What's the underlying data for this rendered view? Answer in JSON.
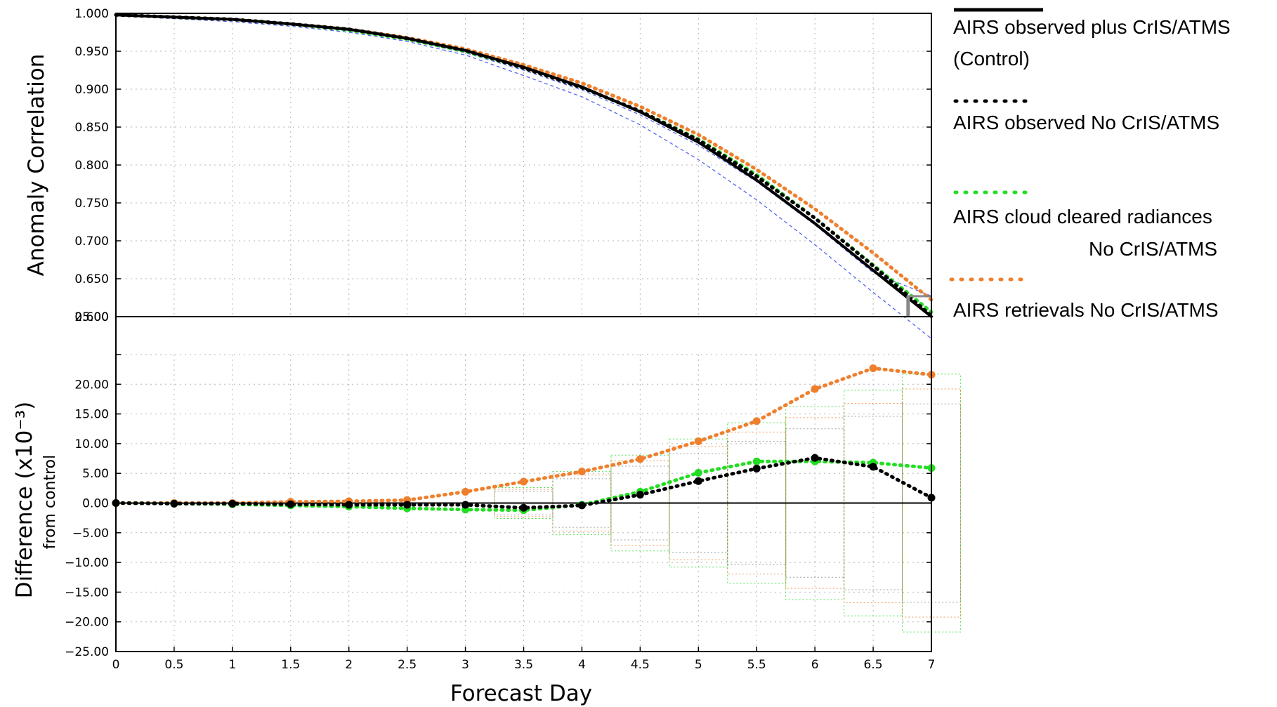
{
  "chart_data": [
    {
      "type": "line",
      "ylabel": "Anomaly Correlation",
      "ylim": [
        0.6,
        1.0
      ],
      "yticks": [
        "1.000",
        "0.950",
        "0.900",
        "0.850",
        "0.800",
        "0.750",
        "0.700",
        "0.650",
        "0.600"
      ],
      "x": [
        0,
        0.5,
        1,
        1.5,
        2,
        2.5,
        3,
        3.5,
        4,
        4.5,
        5,
        5.5,
        6,
        6.5,
        7
      ],
      "grid": true,
      "series": [
        {
          "name": "AIRS observed plus CrIS/ATMS (Control)",
          "color": "#000000",
          "values": [
            0.998,
            0.995,
            0.992,
            0.986,
            0.979,
            0.967,
            0.951,
            0.929,
            0.903,
            0.87,
            0.83,
            0.78,
            0.723,
            0.661,
            0.6
          ]
        },
        {
          "name": "AIRS observed No CrIS/ATMS",
          "color": "#000000",
          "values": [
            0.998,
            0.995,
            0.992,
            0.986,
            0.979,
            0.967,
            0.951,
            0.928,
            0.902,
            0.871,
            0.833,
            0.785,
            0.73,
            0.667,
            0.601
          ]
        },
        {
          "name": "AIRS cloud cleared radiances No CrIS/ATMS",
          "color": "#22dd22",
          "values": [
            0.998,
            0.995,
            0.992,
            0.986,
            0.978,
            0.966,
            0.95,
            0.928,
            0.902,
            0.871,
            0.834,
            0.787,
            0.73,
            0.668,
            0.606
          ]
        },
        {
          "name": "AIRS retrievals No CrIS/ATMS",
          "color": "#ee7f2d",
          "values": [
            0.998,
            0.995,
            0.992,
            0.986,
            0.979,
            0.968,
            0.953,
            0.932,
            0.908,
            0.877,
            0.84,
            0.794,
            0.742,
            0.684,
            0.622
          ]
        }
      ],
      "bands": [
        {
          "color": "#5566ee",
          "values": [
            0.998,
            0.995,
            0.991,
            0.985,
            0.977,
            0.965,
            0.948,
            0.925,
            0.899,
            0.866,
            0.826,
            0.778,
            0.721,
            0.658,
            0.627
          ]
        },
        {
          "color": "#5566ee",
          "values": [
            0.997,
            0.993,
            0.989,
            0.983,
            0.975,
            0.963,
            0.945,
            0.918,
            0.89,
            0.853,
            0.807,
            0.754,
            0.695,
            0.632,
            0.571
          ]
        }
      ]
    },
    {
      "type": "line",
      "xlabel": "Forecast Day",
      "ylabel": "Difference (x10⁻³)",
      "ylabel2": "from control",
      "ylim": [
        -25,
        25
      ],
      "yticks": [
        "25.00",
        "20.00",
        "15.00",
        "10.00",
        "5.00",
        "0.00",
        "−5.00",
        "−10.00",
        "−15.00",
        "−20.00",
        "−25.00"
      ],
      "xticks": [
        "0",
        "0.5",
        "1",
        "1.5",
        "2",
        "2.5",
        "3",
        "3.5",
        "4",
        "4.5",
        "5",
        "5.5",
        "6",
        "6.5",
        "7"
      ],
      "x": [
        0,
        0.5,
        1,
        1.5,
        2,
        2.5,
        3,
        3.5,
        4,
        4.5,
        5,
        5.5,
        6,
        6.5,
        7
      ],
      "grid": true,
      "series": [
        {
          "name": "AIRS observed No CrIS/ATMS",
          "color": "#000000",
          "values": [
            0,
            -0.1,
            -0.1,
            -0.2,
            -0.3,
            -0.3,
            -0.3,
            -0.8,
            -0.4,
            1.4,
            3.7,
            5.8,
            7.6,
            6.1,
            0.9
          ]
        },
        {
          "name": "AIRS cloud cleared radiances No CrIS/ATMS",
          "color": "#22dd22",
          "values": [
            0,
            -0.1,
            -0.2,
            -0.4,
            -0.6,
            -0.9,
            -1.1,
            -1.2,
            -0.3,
            1.9,
            5.1,
            7.0,
            7.0,
            6.8,
            5.9
          ]
        },
        {
          "name": "AIRS retrievals No CrIS/ATMS",
          "color": "#ee7f2d",
          "values": [
            0,
            0,
            0,
            0.2,
            0.3,
            0.5,
            1.9,
            3.6,
            5.3,
            7.4,
            10.4,
            13.8,
            19.2,
            22.7,
            21.6
          ]
        }
      ]
    }
  ],
  "legend": {
    "items": [
      {
        "line1": "AIRS observed plus CrIS/ATMS",
        "line2": "(Control)",
        "style": "solid",
        "color": "#000000"
      },
      {
        "line1": "AIRS observed No CrIS/ATMS",
        "line2": "",
        "style": "dotted",
        "color": "#000000"
      },
      {
        "line1": "AIRS cloud cleared radiances",
        "line2": "No CrIS/ATMS",
        "style": "dotted",
        "color": "#22dd22"
      },
      {
        "line1": "AIRS retrievals No CrIS/ATMS",
        "line2": "",
        "style": "dotted",
        "color": "#ee7f2d"
      }
    ]
  }
}
